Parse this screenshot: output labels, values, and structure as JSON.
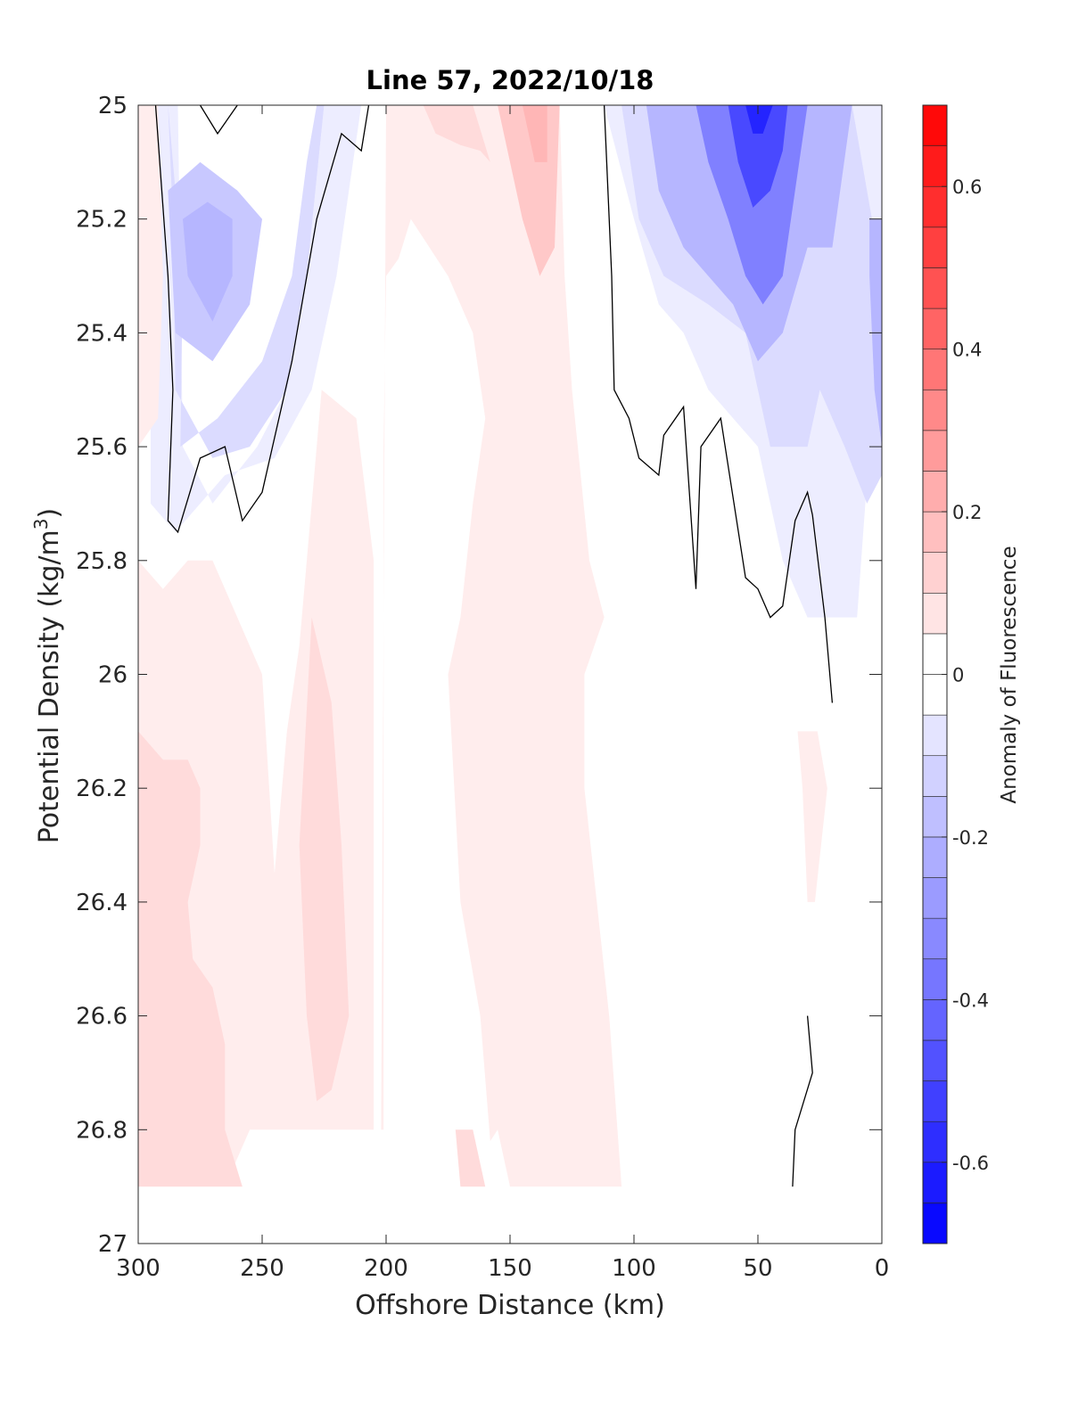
{
  "chart_data": {
    "type": "heatmap",
    "subtype": "filled-contour",
    "title": "Line 57, 2022/10/18",
    "xlabel": "Offshore Distance (km)",
    "ylabel": "Potential Density (kg/m",
    "ylabel_sup": "3",
    "ylabel_tail": ")",
    "xlim": [
      300,
      0
    ],
    "ylim": [
      25,
      27
    ],
    "y_reversed": true,
    "x_ticks": [
      300,
      250,
      200,
      150,
      100,
      50,
      0
    ],
    "x_tick_labels": [
      "300",
      "250",
      "200",
      "150",
      "100",
      "50",
      "0"
    ],
    "y_ticks": [
      25,
      25.2,
      25.4,
      25.6,
      25.8,
      26,
      26.2,
      26.4,
      26.6,
      26.8,
      27
    ],
    "y_tick_labels": [
      "25",
      "25.2",
      "25.4",
      "25.6",
      "25.8",
      "26",
      "26.2",
      "26.4",
      "26.6",
      "26.8",
      "27"
    ],
    "colorbar": {
      "label": "Anomaly of Fluorescence",
      "range": [
        -0.7,
        0.7
      ],
      "step": 0.05,
      "ticks": [
        -0.6,
        -0.4,
        -0.2,
        0,
        0.2,
        0.4,
        0.6
      ],
      "tick_labels": [
        "-0.6",
        "-0.4",
        "-0.2",
        "0",
        "0.2",
        "0.4",
        "0.6"
      ],
      "positive_color": "#ff0000",
      "negative_color": "#0000ff",
      "neutral_color": "#ffffff"
    },
    "zero_contour_color": "#000000",
    "regions": [
      {
        "name": "upper-left-negative-outer",
        "level": -0.05,
        "polygon": [
          [
            295,
            25
          ],
          [
            284,
            25
          ],
          [
            283,
            25.3
          ],
          [
            282,
            25.6
          ],
          [
            270,
            25.7
          ],
          [
            252,
            25.6
          ],
          [
            240,
            25.5
          ],
          [
            232,
            25.3
          ],
          [
            225,
            25
          ],
          [
            210,
            25
          ],
          [
            220,
            25.3
          ],
          [
            230,
            25.5
          ],
          [
            245,
            25.62
          ],
          [
            265,
            25.65
          ],
          [
            285,
            25.75
          ],
          [
            295,
            25.7
          ]
        ]
      },
      {
        "name": "upper-left-negative-mid",
        "level": -0.1,
        "polygon": [
          [
            288,
            25
          ],
          [
            282,
            25.3
          ],
          [
            283,
            25.6
          ],
          [
            268,
            25.55
          ],
          [
            250,
            25.45
          ],
          [
            238,
            25.3
          ],
          [
            232,
            25.1
          ],
          [
            228,
            25
          ],
          [
            225,
            25
          ],
          [
            232,
            25.3
          ],
          [
            240,
            25.5
          ],
          [
            255,
            25.6
          ],
          [
            270,
            25.62
          ],
          [
            285,
            25.5
          ],
          [
            286,
            25.2
          ]
        ]
      },
      {
        "name": "upper-left-negative-core",
        "level": -0.15,
        "polygon": [
          [
            288,
            25.15
          ],
          [
            285,
            25.4
          ],
          [
            270,
            25.45
          ],
          [
            255,
            25.35
          ],
          [
            250,
            25.2
          ],
          [
            260,
            25.15
          ],
          [
            275,
            25.1
          ]
        ]
      },
      {
        "name": "upper-left-negative-deep",
        "level": -0.2,
        "polygon": [
          [
            282,
            25.2
          ],
          [
            280,
            25.3
          ],
          [
            270,
            25.38
          ],
          [
            262,
            25.3
          ],
          [
            262,
            25.2
          ],
          [
            272,
            25.17
          ]
        ]
      },
      {
        "name": "left-positive-thin-strip",
        "level": 0.05,
        "polygon": [
          [
            300,
            25
          ],
          [
            292,
            25
          ],
          [
            290,
            25.3
          ],
          [
            292,
            25.55
          ],
          [
            300,
            25.6
          ]
        ]
      },
      {
        "name": "left-positive-lower",
        "level": 0.05,
        "polygon": [
          [
            300,
            25.8
          ],
          [
            290,
            25.85
          ],
          [
            280,
            25.8
          ],
          [
            270,
            25.8
          ],
          [
            260,
            25.9
          ],
          [
            250,
            26.0
          ],
          [
            245,
            26.35
          ],
          [
            240,
            26.1
          ],
          [
            235,
            25.95
          ],
          [
            226,
            25.5
          ],
          [
            212,
            25.55
          ],
          [
            205,
            25.8
          ],
          [
            205,
            26.8
          ],
          [
            255,
            26.8
          ],
          [
            265,
            26.9
          ],
          [
            300,
            26.9
          ]
        ]
      },
      {
        "name": "left-positive-core",
        "level": 0.1,
        "polygon": [
          [
            300,
            26.1
          ],
          [
            290,
            26.15
          ],
          [
            280,
            26.15
          ],
          [
            275,
            26.2
          ],
          [
            275,
            26.3
          ],
          [
            280,
            26.4
          ],
          [
            278,
            26.5
          ],
          [
            270,
            26.55
          ],
          [
            265,
            26.65
          ],
          [
            265,
            26.8
          ],
          [
            258,
            26.9
          ],
          [
            300,
            26.9
          ]
        ]
      },
      {
        "name": "left-positive-core2",
        "level": 0.1,
        "polygon": [
          [
            230,
            25.9
          ],
          [
            235,
            26.3
          ],
          [
            232,
            26.6
          ],
          [
            228,
            26.75
          ],
          [
            222,
            26.73
          ],
          [
            215,
            26.6
          ],
          [
            218,
            26.3
          ],
          [
            222,
            26.05
          ]
        ]
      },
      {
        "name": "center-positive-column",
        "level": 0.05,
        "polygon": [
          [
            200,
            25
          ],
          [
            130,
            25
          ],
          [
            128,
            25.3
          ],
          [
            125,
            25.5
          ],
          [
            118,
            25.8
          ],
          [
            112,
            25.9
          ],
          [
            120,
            26
          ],
          [
            120,
            26.2
          ],
          [
            110,
            26.6
          ],
          [
            105,
            26.9
          ],
          [
            150,
            26.9
          ],
          [
            155,
            26.8
          ],
          [
            158,
            26.82
          ],
          [
            162,
            26.6
          ],
          [
            170,
            26.4
          ],
          [
            175,
            26.0
          ],
          [
            170,
            25.9
          ],
          [
            165,
            25.7
          ],
          [
            160,
            25.55
          ],
          [
            165,
            25.4
          ],
          [
            175,
            25.3
          ],
          [
            190,
            25.2
          ],
          [
            195,
            25.27
          ],
          [
            200,
            25.3
          ],
          [
            201,
            25.6
          ],
          [
            201,
            26.8
          ],
          [
            202,
            26.8
          ]
        ]
      },
      {
        "name": "center-positive-top",
        "level": 0.1,
        "polygon": [
          [
            185,
            25
          ],
          [
            165,
            25
          ],
          [
            158,
            25.1
          ],
          [
            162,
            25.08
          ],
          [
            170,
            25.07
          ],
          [
            180,
            25.05
          ]
        ]
      },
      {
        "name": "center-positive-top2",
        "level": 0.15,
        "polygon": [
          [
            155,
            25
          ],
          [
            130,
            25
          ],
          [
            132,
            25.25
          ],
          [
            138,
            25.3
          ],
          [
            145,
            25.2
          ],
          [
            150,
            25.1
          ]
        ]
      },
      {
        "name": "center-positive-top3",
        "level": 0.2,
        "polygon": [
          [
            145,
            25
          ],
          [
            135,
            25
          ],
          [
            135,
            25.1
          ],
          [
            140,
            25.1
          ]
        ]
      },
      {
        "name": "center-positive-bottom",
        "level": 0.1,
        "polygon": [
          [
            172,
            26.8
          ],
          [
            165,
            26.8
          ],
          [
            160,
            26.9
          ],
          [
            170,
            26.9
          ]
        ]
      },
      {
        "name": "right-positive-small",
        "level": 0.05,
        "polygon": [
          [
            34,
            26.1
          ],
          [
            26,
            26.1
          ],
          [
            22,
            26.2
          ],
          [
            27,
            26.4
          ],
          [
            30,
            26.4
          ],
          [
            32,
            26.2
          ]
        ]
      },
      {
        "name": "right-negative-outer",
        "level": -0.05,
        "polygon": [
          [
            112,
            25
          ],
          [
            100,
            25.2
          ],
          [
            90,
            25.35
          ],
          [
            80,
            25.4
          ],
          [
            70,
            25.5
          ],
          [
            60,
            25.55
          ],
          [
            50,
            25.6
          ],
          [
            40,
            25.8
          ],
          [
            30,
            25.9
          ],
          [
            12,
            25.9
          ],
          [
            10,
            25.9
          ],
          [
            5,
            25.6
          ],
          [
            0,
            25.2
          ],
          [
            0,
            25
          ],
          [
            15,
            25
          ]
        ]
      },
      {
        "name": "right-negative-mid",
        "level": -0.1,
        "polygon": [
          [
            105,
            25
          ],
          [
            98,
            25.2
          ],
          [
            88,
            25.3
          ],
          [
            70,
            25.35
          ],
          [
            55,
            25.4
          ],
          [
            45,
            25.6
          ],
          [
            30,
            25.6
          ],
          [
            25,
            25.5
          ],
          [
            15,
            25.6
          ],
          [
            6,
            25.7
          ],
          [
            0,
            25.65
          ],
          [
            0,
            25.2
          ],
          [
            4,
            25.2
          ],
          [
            12,
            25
          ]
        ]
      },
      {
        "name": "right-negative-core",
        "level": -0.2,
        "polygon": [
          [
            95,
            25
          ],
          [
            90,
            25.15
          ],
          [
            80,
            25.25
          ],
          [
            70,
            25.3
          ],
          [
            60,
            25.35
          ],
          [
            50,
            25.45
          ],
          [
            40,
            25.4
          ],
          [
            30,
            25.25
          ],
          [
            20,
            25.25
          ],
          [
            12,
            25
          ]
        ]
      },
      {
        "name": "right-negative-strong",
        "level": -0.35,
        "polygon": [
          [
            75,
            25
          ],
          [
            70,
            25.1
          ],
          [
            62,
            25.2
          ],
          [
            55,
            25.3
          ],
          [
            48,
            25.35
          ],
          [
            40,
            25.3
          ],
          [
            35,
            25.15
          ],
          [
            30,
            25
          ]
        ]
      },
      {
        "name": "right-negative-strongest",
        "level": -0.5,
        "polygon": [
          [
            62,
            25
          ],
          [
            58,
            25.1
          ],
          [
            52,
            25.18
          ],
          [
            45,
            25.15
          ],
          [
            40,
            25.08
          ],
          [
            38,
            25
          ]
        ]
      },
      {
        "name": "right-negative-peak",
        "level": -0.6,
        "polygon": [
          [
            55,
            25
          ],
          [
            52,
            25.05
          ],
          [
            48,
            25.05
          ],
          [
            44,
            25
          ]
        ]
      },
      {
        "name": "right-edge-negative",
        "level": -0.2,
        "polygon": [
          [
            5,
            25.2
          ],
          [
            0,
            25.2
          ],
          [
            0,
            25.6
          ],
          [
            3,
            25.5
          ],
          [
            5,
            25.3
          ]
        ]
      }
    ],
    "zero_contours": [
      [
        [
          293,
          25
        ],
        [
          288,
          25.3
        ],
        [
          286,
          25.5
        ],
        [
          288,
          25.73
        ],
        [
          284,
          25.75
        ],
        [
          275,
          25.62
        ],
        [
          265,
          25.6
        ],
        [
          258,
          25.73
        ],
        [
          250,
          25.68
        ],
        [
          238,
          25.45
        ],
        [
          228,
          25.2
        ],
        [
          218,
          25.05
        ],
        [
          210,
          25.08
        ],
        [
          207,
          25
        ]
      ],
      [
        [
          275,
          25
        ],
        [
          268,
          25.05
        ],
        [
          260,
          25
        ]
      ],
      [
        [
          112,
          25
        ],
        [
          109,
          25.3
        ],
        [
          108,
          25.5
        ],
        [
          102,
          25.55
        ],
        [
          98,
          25.62
        ],
        [
          90,
          25.65
        ],
        [
          88,
          25.58
        ],
        [
          80,
          25.53
        ],
        [
          75,
          25.85
        ],
        [
          73,
          25.6
        ],
        [
          65,
          25.55
        ],
        [
          55,
          25.83
        ],
        [
          50,
          25.85
        ],
        [
          45,
          25.9
        ],
        [
          40,
          25.88
        ],
        [
          35,
          25.73
        ],
        [
          32,
          25.7
        ],
        [
          30,
          25.68
        ],
        [
          28,
          25.72
        ],
        [
          23,
          25.9
        ],
        [
          20,
          26.05
        ]
      ],
      [
        [
          30,
          26.6
        ],
        [
          28,
          26.7
        ],
        [
          35,
          26.8
        ],
        [
          36,
          26.9
        ]
      ]
    ]
  }
}
